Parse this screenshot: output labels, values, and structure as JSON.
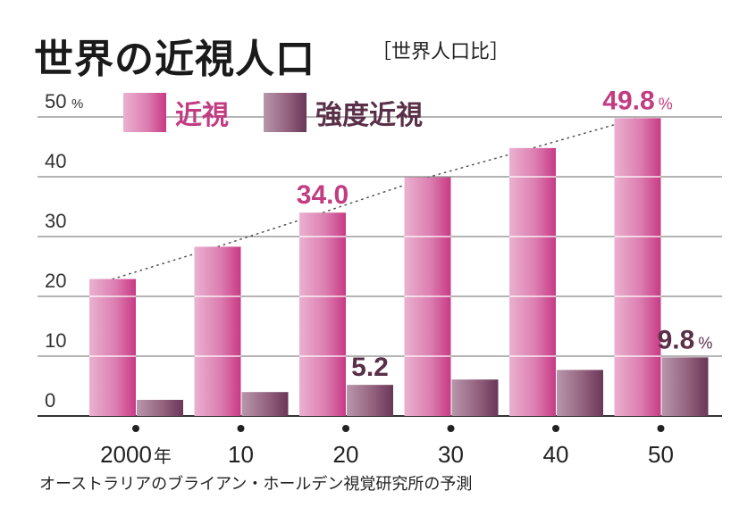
{
  "header": {
    "title": "世界の近視人口",
    "subtitle": "［世界人口比］"
  },
  "footer": {
    "source": "オーストラリアのブライアン・ホールデン視覚研究所の予測"
  },
  "colors": {
    "myopia_light": "#e9a6c8",
    "myopia_dark": "#cc3d86",
    "high_light": "#b391a6",
    "high_dark": "#6e3c5a",
    "label_myopia": "#c23c82",
    "label_high": "#5a3048",
    "axis": "#333333"
  },
  "chart_data": {
    "type": "bar",
    "categories": [
      "2000年",
      "10",
      "20",
      "30",
      "40",
      "50"
    ],
    "series": [
      {
        "name": "近視",
        "values": [
          22.9,
          28.3,
          34.0,
          39.9,
          44.8,
          49.8
        ]
      },
      {
        "name": "強度近視",
        "values": [
          2.7,
          4.0,
          5.2,
          6.1,
          7.7,
          9.8
        ]
      }
    ],
    "data_labels": [
      {
        "series": 0,
        "index": 2,
        "text": "34.0",
        "unit": ""
      },
      {
        "series": 0,
        "index": 5,
        "text": "49.8",
        "unit": "%"
      },
      {
        "series": 1,
        "index": 2,
        "text": "5.2",
        "unit": ""
      },
      {
        "series": 1,
        "index": 5,
        "text": "9.8",
        "unit": "%"
      }
    ],
    "yticks": [
      0,
      10,
      20,
      30,
      40,
      50
    ],
    "ytick_labels": [
      "0",
      "10",
      "20",
      "30",
      "40",
      "50"
    ],
    "y_unit": "%",
    "ylim": [
      0,
      50
    ],
    "grid": true,
    "legend_position": "top-left",
    "trend_line": "dotted line connecting top of 近視 bars"
  }
}
